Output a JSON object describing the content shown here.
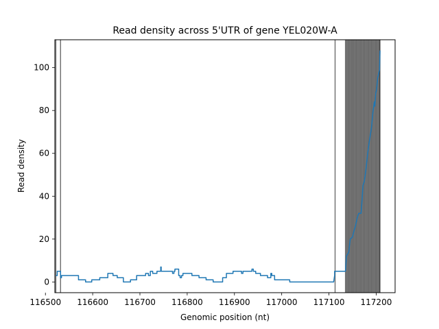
{
  "chart_data": {
    "type": "line",
    "title": "Read density across 5'UTR of gene YEL020W-A",
    "xlabel": "Genomic position (nt)",
    "ylabel": "Read density",
    "xlim": [
      116520,
      117240
    ],
    "ylim": [
      -5,
      113
    ],
    "xticks": [
      116500,
      116600,
      116700,
      116800,
      116900,
      117000,
      117100,
      117200
    ],
    "yticks": [
      0,
      20,
      40,
      60,
      80,
      100
    ],
    "grid": false,
    "line_color": "#1f77b4",
    "vline_color": "#000000",
    "series": [
      {
        "points": [
          [
            116522,
            3
          ],
          [
            116525,
            3
          ],
          [
            116525,
            5
          ],
          [
            116532,
            5
          ],
          [
            116532,
            2
          ],
          [
            116534,
            2
          ],
          [
            116534,
            3
          ],
          [
            116570,
            3
          ],
          [
            116570,
            1
          ],
          [
            116585,
            1
          ],
          [
            116585,
            0
          ],
          [
            116598,
            0
          ],
          [
            116598,
            1
          ],
          [
            116615,
            1
          ],
          [
            116615,
            2
          ],
          [
            116632,
            2
          ],
          [
            116632,
            4
          ],
          [
            116643,
            4
          ],
          [
            116643,
            3
          ],
          [
            116652,
            3
          ],
          [
            116652,
            2
          ],
          [
            116665,
            2
          ],
          [
            116665,
            0
          ],
          [
            116680,
            0
          ],
          [
            116680,
            1
          ],
          [
            116693,
            1
          ],
          [
            116693,
            3
          ],
          [
            116712,
            3
          ],
          [
            116712,
            4
          ],
          [
            116718,
            4
          ],
          [
            116718,
            3
          ],
          [
            116722,
            3
          ],
          [
            116722,
            5
          ],
          [
            116727,
            5
          ],
          [
            116727,
            4
          ],
          [
            116736,
            4
          ],
          [
            116736,
            5
          ],
          [
            116744,
            5
          ],
          [
            116744,
            7
          ],
          [
            116745,
            7
          ],
          [
            116745,
            5
          ],
          [
            116769,
            5
          ],
          [
            116769,
            4
          ],
          [
            116772,
            4
          ],
          [
            116772,
            5
          ],
          [
            116774,
            5
          ],
          [
            116774,
            6
          ],
          [
            116782,
            6
          ],
          [
            116782,
            3
          ],
          [
            116785,
            3
          ],
          [
            116785,
            2
          ],
          [
            116788,
            2
          ],
          [
            116788,
            3
          ],
          [
            116791,
            3
          ],
          [
            116791,
            4
          ],
          [
            116810,
            4
          ],
          [
            116810,
            3
          ],
          [
            116825,
            3
          ],
          [
            116825,
            2
          ],
          [
            116840,
            2
          ],
          [
            116840,
            1
          ],
          [
            116855,
            1
          ],
          [
            116855,
            0
          ],
          [
            116875,
            0
          ],
          [
            116875,
            2
          ],
          [
            116883,
            2
          ],
          [
            116883,
            4
          ],
          [
            116897,
            4
          ],
          [
            116897,
            5
          ],
          [
            116915,
            5
          ],
          [
            116915,
            4
          ],
          [
            116918,
            4
          ],
          [
            116918,
            5
          ],
          [
            116937,
            5
          ],
          [
            116937,
            6
          ],
          [
            116940,
            6
          ],
          [
            116940,
            5
          ],
          [
            116945,
            5
          ],
          [
            116945,
            4
          ],
          [
            116955,
            4
          ],
          [
            116955,
            3
          ],
          [
            116970,
            3
          ],
          [
            116970,
            2
          ],
          [
            116977,
            2
          ],
          [
            116977,
            4
          ],
          [
            116979,
            4
          ],
          [
            116979,
            3
          ],
          [
            116985,
            3
          ],
          [
            116985,
            1
          ],
          [
            117017,
            1
          ],
          [
            117017,
            0
          ],
          [
            117110,
            0
          ],
          [
            117112,
            3
          ],
          [
            117112,
            5
          ],
          [
            117135,
            5
          ],
          [
            117137,
            12
          ],
          [
            117142,
            14
          ],
          [
            117145,
            20
          ],
          [
            117150,
            21
          ],
          [
            117152,
            23
          ],
          [
            117156,
            26
          ],
          [
            117160,
            30
          ],
          [
            117163,
            32
          ],
          [
            117168,
            32
          ],
          [
            117170,
            38
          ],
          [
            117172,
            45
          ],
          [
            117175,
            47
          ],
          [
            117178,
            52
          ],
          [
            117182,
            60
          ],
          [
            117185,
            65
          ],
          [
            117190,
            72
          ],
          [
            117193,
            79
          ],
          [
            117196,
            84
          ],
          [
            117197,
            82
          ],
          [
            117199,
            88
          ],
          [
            117201,
            90
          ],
          [
            117203,
            95
          ],
          [
            117205,
            97
          ],
          [
            117207,
            99
          ],
          [
            117208,
            108
          ]
        ]
      }
    ],
    "vlines": [
      116522,
      116532,
      117113,
      117135,
      117137,
      117139,
      117141,
      117143,
      117145,
      117147,
      117149,
      117151,
      117153,
      117155,
      117157,
      117159,
      117161,
      117163,
      117165,
      117167,
      117169,
      117171,
      117173,
      117175,
      117177,
      117179,
      117181,
      117183,
      117185,
      117187,
      117189,
      117191,
      117193,
      117195,
      117197,
      117199,
      117201,
      117203,
      117205,
      117207,
      117208
    ]
  }
}
